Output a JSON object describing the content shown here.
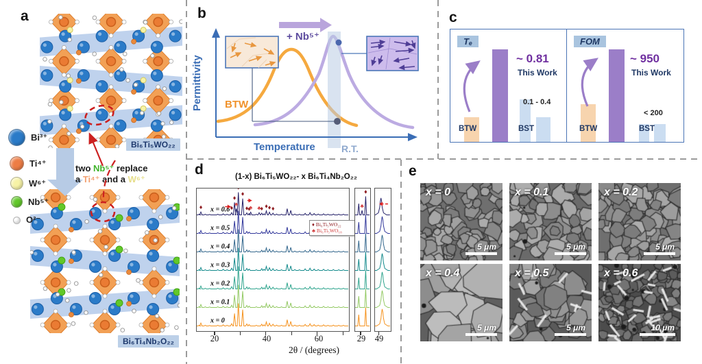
{
  "panels": {
    "a_label": "a",
    "b_label": "b",
    "c_label": "c",
    "d_label": "d",
    "e_label": "e"
  },
  "panel_a": {
    "legend": [
      {
        "label": "Bi³⁺",
        "color": "#2B7BC8"
      },
      {
        "label": "Ti⁴⁺",
        "color": "#ED7D45"
      },
      {
        "label": "W⁶⁺",
        "color": "#F7F3A6"
      },
      {
        "label": "Nb⁵⁺",
        "color": "#62C82A"
      },
      {
        "label": "O²⁻",
        "color": "#FFFFFF"
      }
    ],
    "colors": {
      "bi": "#2B7BC8",
      "ti": "#ED7D45",
      "w": "#F7F3A6",
      "nb": "#62C82A",
      "o": "#FFFFFF"
    },
    "top_structure_label": "Bi₆Ti₅WO₂₂",
    "bottom_structure_label": "Bi₆Ti₄Nb₂O₂₂",
    "annotation": {
      "l1a": "two ",
      "l1b": "Nb⁵⁺",
      "l1c": " replace",
      "l2a": "a ",
      "l2b": "Ti⁴⁺",
      "l2c": " and a ",
      "l2d": "W⁶⁺"
    },
    "annotation_colors": {
      "nb": "#3FB32A",
      "ti": "#F2A071",
      "w": "#E6DE8A"
    }
  },
  "panel_b": {
    "ylabel": "Permittivity",
    "xlabel": "Temperature",
    "btw_label": "BTW",
    "arrow_label": "+ Nb⁵⁺",
    "rt_label": "R.T.",
    "colors": {
      "axis": "#3A6DB5",
      "btw_curve": "#F5A93F",
      "nb_curve": "#BCABE2",
      "band": "#B9CCE4",
      "arrow": "#B9A5DC",
      "arrow_text": "#5C4B9E",
      "rt_text": "#8FA9CE"
    }
  },
  "panel_e": {
    "images": [
      {
        "label": "x = 0",
        "scale": "5 μm"
      },
      {
        "label": "x = 0.1",
        "scale": "5 μm"
      },
      {
        "label": "x = 0.2",
        "scale": "5 μm"
      },
      {
        "label": "x = 0.4",
        "scale": "5 μm"
      },
      {
        "label": "x = 0.5",
        "scale": "5 μm"
      },
      {
        "label": "x = 0.6",
        "scale": "10 μm"
      }
    ]
  },
  "chart_data": [
    {
      "panel": "c-left",
      "type": "bar",
      "title_badge": "Tₑ",
      "categories": [
        "BTW",
        "This Work",
        "BST",
        "BST"
      ],
      "values": [
        0.27,
        1.0,
        0.46,
        0.27
      ],
      "bar_colors": [
        "#F7D4AE",
        "#9B7EC8",
        "#CBDDF1",
        "#CBDDF1"
      ],
      "highlight_value": "~ 0.81",
      "highlight_label": "This Work",
      "bst_note": "0.1 - 0.4",
      "btw_label": "BTW",
      "bst_label": "BST",
      "note": "relative bar heights; only annotated numeric values are shown in figure"
    },
    {
      "panel": "c-right",
      "type": "bar",
      "title_badge": "FOM",
      "categories": [
        "BTW",
        "This Work",
        "BST",
        "BST"
      ],
      "values": [
        0.41,
        1.0,
        0.19,
        0.19
      ],
      "bar_colors": [
        "#F7D4AE",
        "#9B7EC8",
        "#CBDDF1",
        "#CBDDF1"
      ],
      "highlight_value": "~ 950",
      "highlight_label": "This Work",
      "bst_note": "< 200",
      "btw_label": "BTW",
      "bst_label": "BST",
      "note": "relative bar heights; only annotated numeric values are shown in figure"
    },
    {
      "panel": "d",
      "type": "line",
      "subtype": "stacked XRD patterns",
      "title": "(1-x) Bi₆Ti₅WO₂₂- x Bi₆Ti₄Nb₂O₂₂",
      "xlabel": "2θ / (degrees)",
      "x_range": [
        13,
        72
      ],
      "tick_labels": [
        "20",
        "40",
        "60"
      ],
      "series": [
        {
          "label": "x = 0.6",
          "color": "#232068"
        },
        {
          "label": "x = 0.5",
          "color": "#31379B"
        },
        {
          "label": "x = 0.4",
          "color": "#33678D"
        },
        {
          "label": "x = 0.3",
          "color": "#12898B"
        },
        {
          "label": "x = 0.2",
          "color": "#2EA48D"
        },
        {
          "label": "x = 0.1",
          "color": "#93C963"
        },
        {
          "label": "x = 0",
          "color": "#F5921E"
        }
      ],
      "peaks_2theta": [
        [
          13.9,
          0.03
        ],
        [
          14.6,
          0.13
        ],
        [
          16.3,
          0.03
        ],
        [
          18.0,
          0.02
        ],
        [
          21.2,
          0.03
        ],
        [
          23.3,
          0.05
        ],
        [
          24.8,
          0.03
        ],
        [
          26.6,
          0.1
        ],
        [
          27.7,
          0.55
        ],
        [
          29.2,
          1.0
        ],
        [
          30.9,
          0.72
        ],
        [
          32.5,
          0.09
        ],
        [
          33.4,
          0.06
        ],
        [
          36.2,
          0.03
        ],
        [
          38.3,
          0.08
        ],
        [
          39.2,
          0.05
        ],
        [
          40.1,
          0.18
        ],
        [
          41.3,
          0.12
        ],
        [
          42.7,
          0.08
        ],
        [
          44.1,
          0.04
        ],
        [
          46.0,
          0.03
        ],
        [
          48.2,
          0.28
        ],
        [
          49.6,
          0.2
        ],
        [
          51.2,
          0.04
        ],
        [
          53.0,
          0.03
        ],
        [
          55.2,
          0.07
        ],
        [
          57.1,
          0.1
        ],
        [
          58.7,
          0.06
        ],
        [
          60.3,
          0.04
        ],
        [
          62.4,
          0.05
        ],
        [
          64.1,
          0.03
        ],
        [
          66.2,
          0.04
        ],
        [
          68.3,
          0.03
        ],
        [
          70.1,
          0.03
        ]
      ],
      "secondary_peaks_x06": [
        [
          28.4,
          0.28
        ],
        [
          34.0,
          0.12
        ],
        [
          37.3,
          0.1
        ]
      ],
      "phase_legend": [
        {
          "marker": "♦",
          "label": "Bi₆Ti₅WO₂₂",
          "color": "#8F1D22"
        },
        {
          "marker": "♣",
          "label": "Bi₆Ti₅WO₁₈",
          "color": "#D03A3A"
        }
      ],
      "marker_positions": {
        "diamonds": [
          14.6,
          26.6,
          27.7,
          29.2,
          30.9,
          32.5,
          33.4,
          38.3,
          40.1,
          41.3,
          42.7
        ],
        "clubs": [
          28.4,
          34.0,
          37.3
        ]
      },
      "insets": [
        {
          "tick": "29",
          "x_range": [
            27.9,
            30.7
          ],
          "peaks": [
            [
              28.6,
              0.5
            ],
            [
              29.95,
              0.82
            ]
          ],
          "x06_extra_peak": [
            29.25,
            0.2
          ]
        },
        {
          "tick": "49",
          "x_range": [
            48.4,
            50.8
          ],
          "peaks": [
            [
              49.55,
              0.75
            ]
          ],
          "x06_shift_note": "peak shifts left for x = 0.6 (red dashed arrow)"
        }
      ]
    },
    {
      "panel": "b",
      "type": "line",
      "subtype": "schematic permittivity vs temperature",
      "xlabel": "Temperature",
      "ylabel": "Permittivity",
      "series": [
        {
          "name": "BTW",
          "color": "#F5A93F",
          "peak_position": "below room temperature"
        },
        {
          "name": "BTW + Nb⁵⁺",
          "color": "#BCABE2",
          "peak_position": "near R.T."
        }
      ],
      "annotations": [
        "+ Nb⁵⁺ shifts permittivity peak toward R.T.",
        "R.T. band marked on temperature axis"
      ]
    }
  ]
}
